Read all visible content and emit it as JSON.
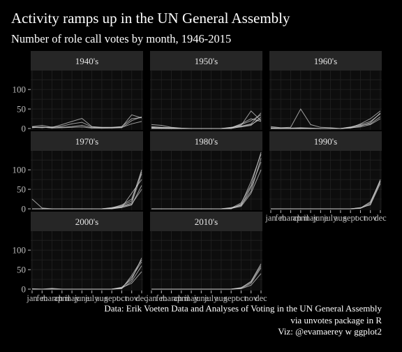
{
  "title": "Activity ramps up in the UN General Assembly",
  "subtitle": "Number of role call votes by month, 1946-2015",
  "caption": [
    "Data: Erik Voeten Data and Analyses of Voting in the UN General Assembly",
    "via unvotes package in R",
    "Viz: @evamaerey w ggplot2"
  ],
  "colors": {
    "background": "#000000",
    "panel": "#0d0d0d",
    "strip": "#262626",
    "grid": "#222222",
    "line": "#d0d0d0",
    "text": "#ffffff",
    "axis_text": "#bdbdbd"
  },
  "chart_data": {
    "type": "line",
    "facet_by": "decade",
    "ylim": [
      0,
      145
    ],
    "y_ticks": [
      0,
      50,
      100
    ],
    "x_tick_labels": [
      "jan",
      "feb",
      "march",
      "april",
      "may",
      "june",
      "july",
      "aug",
      "sept",
      "oct",
      "nov",
      "dec"
    ],
    "grid": true,
    "panels": [
      {
        "label": "1940's",
        "series": [
          {
            "values": [
              5,
              8,
              3,
              10,
              18,
              26,
              5,
              3,
              3,
              5,
              25,
              28
            ]
          },
          {
            "values": [
              4,
              3,
              2,
              6,
              12,
              16,
              4,
              2,
              2,
              4,
              35,
              27
            ]
          },
          {
            "values": [
              3,
              2,
              4,
              3,
              5,
              8,
              2,
              1,
              2,
              3,
              12,
              18
            ]
          },
          {
            "values": [
              2,
              4,
              1,
              2,
              3,
              4,
              1,
              1,
              1,
              2,
              20,
              30
            ]
          }
        ]
      },
      {
        "label": "1950's",
        "series": [
          {
            "values": [
              10,
              8,
              3,
              1,
              0,
              0,
              0,
              0,
              2,
              8,
              45,
              20
            ]
          },
          {
            "values": [
              5,
              3,
              2,
              0,
              0,
              0,
              0,
              0,
              1,
              10,
              20,
              35
            ]
          },
          {
            "values": [
              2,
              1,
              0,
              0,
              0,
              0,
              0,
              0,
              3,
              6,
              12,
              40
            ]
          },
          {
            "values": [
              1,
              2,
              1,
              0,
              0,
              0,
              0,
              0,
              1,
              4,
              8,
              30
            ]
          },
          {
            "values": [
              3,
              1,
              0,
              0,
              0,
              0,
              0,
              0,
              2,
              12,
              25,
              18
            ]
          },
          {
            "values": [
              0,
              0,
              0,
              0,
              0,
              0,
              0,
              0,
              0,
              5,
              10,
              25
            ]
          }
        ]
      },
      {
        "label": "1960's",
        "series": [
          {
            "values": [
              5,
              2,
              3,
              50,
              10,
              3,
              2,
              0,
              4,
              10,
              18,
              38
            ]
          },
          {
            "values": [
              2,
              1,
              1,
              2,
              1,
              0,
              0,
              0,
              2,
              12,
              25,
              45
            ]
          },
          {
            "values": [
              0,
              0,
              0,
              0,
              0,
              0,
              0,
              0,
              3,
              8,
              12,
              30
            ]
          },
          {
            "values": [
              1,
              0,
              0,
              0,
              0,
              0,
              0,
              0,
              1,
              6,
              15,
              40
            ]
          },
          {
            "values": [
              0,
              0,
              0,
              1,
              0,
              0,
              0,
              0,
              2,
              4,
              10,
              25
            ]
          }
        ]
      },
      {
        "label": "1970's",
        "series": [
          {
            "values": [
              25,
              2,
              0,
              0,
              0,
              0,
              0,
              0,
              3,
              8,
              20,
              100
            ]
          },
          {
            "values": [
              0,
              0,
              0,
              0,
              0,
              0,
              0,
              0,
              2,
              6,
              15,
              90
            ]
          },
          {
            "values": [
              0,
              0,
              0,
              0,
              0,
              0,
              0,
              0,
              1,
              4,
              40,
              75
            ]
          },
          {
            "values": [
              0,
              0,
              0,
              0,
              0,
              0,
              0,
              0,
              0,
              3,
              10,
              60
            ]
          },
          {
            "values": [
              0,
              0,
              0,
              0,
              0,
              0,
              0,
              0,
              2,
              10,
              25,
              95
            ]
          },
          {
            "values": [
              0,
              0,
              0,
              0,
              0,
              0,
              0,
              0,
              1,
              5,
              12,
              50
            ]
          }
        ]
      },
      {
        "label": "1980's",
        "series": [
          {
            "values": [
              0,
              0,
              0,
              0,
              0,
              0,
              0,
              0,
              2,
              15,
              60,
              145
            ]
          },
          {
            "values": [
              0,
              0,
              0,
              0,
              0,
              0,
              0,
              0,
              1,
              10,
              45,
              130
            ]
          },
          {
            "values": [
              0,
              0,
              0,
              0,
              0,
              0,
              0,
              0,
              3,
              8,
              55,
              120
            ]
          },
          {
            "values": [
              0,
              0,
              0,
              0,
              0,
              0,
              0,
              0,
              0,
              12,
              70,
              140
            ]
          },
          {
            "values": [
              0,
              0,
              0,
              0,
              0,
              0,
              0,
              0,
              1,
              6,
              40,
              100
            ]
          }
        ]
      },
      {
        "label": "1990's",
        "series": [
          {
            "values": [
              0,
              0,
              0,
              0,
              0,
              0,
              0,
              0,
              0,
              2,
              15,
              75
            ]
          },
          {
            "values": [
              0,
              0,
              0,
              0,
              0,
              0,
              0,
              0,
              0,
              1,
              12,
              70
            ]
          },
          {
            "values": [
              0,
              0,
              0,
              0,
              0,
              0,
              0,
              0,
              0,
              3,
              10,
              65
            ]
          },
          {
            "values": [
              0,
              0,
              0,
              0,
              0,
              0,
              0,
              0,
              0,
              2,
              18,
              72
            ]
          }
        ]
      },
      {
        "label": "2000's",
        "series": [
          {
            "values": [
              0,
              0,
              2,
              0,
              0,
              0,
              0,
              0,
              0,
              5,
              25,
              80
            ]
          },
          {
            "values": [
              1,
              0,
              0,
              0,
              0,
              0,
              0,
              0,
              0,
              3,
              30,
              70
            ]
          },
          {
            "values": [
              0,
              0,
              0,
              0,
              0,
              0,
              0,
              0,
              0,
              2,
              20,
              60
            ]
          },
          {
            "values": [
              0,
              0,
              0,
              0,
              0,
              0,
              0,
              0,
              0,
              4,
              15,
              45
            ]
          },
          {
            "values": [
              0,
              0,
              0,
              0,
              0,
              0,
              0,
              0,
              0,
              1,
              35,
              75
            ]
          }
        ]
      },
      {
        "label": "2010's",
        "series": [
          {
            "values": [
              0,
              0,
              0,
              0,
              0,
              0,
              0,
              0,
              0,
              3,
              20,
              65
            ]
          },
          {
            "values": [
              0,
              0,
              0,
              0,
              0,
              0,
              0,
              0,
              0,
              2,
              15,
              55
            ]
          },
          {
            "values": [
              0,
              0,
              0,
              0,
              0,
              0,
              0,
              0,
              0,
              4,
              18,
              60
            ]
          },
          {
            "values": [
              0,
              0,
              0,
              0,
              0,
              0,
              0,
              0,
              0,
              1,
              10,
              40
            ]
          }
        ]
      }
    ]
  }
}
